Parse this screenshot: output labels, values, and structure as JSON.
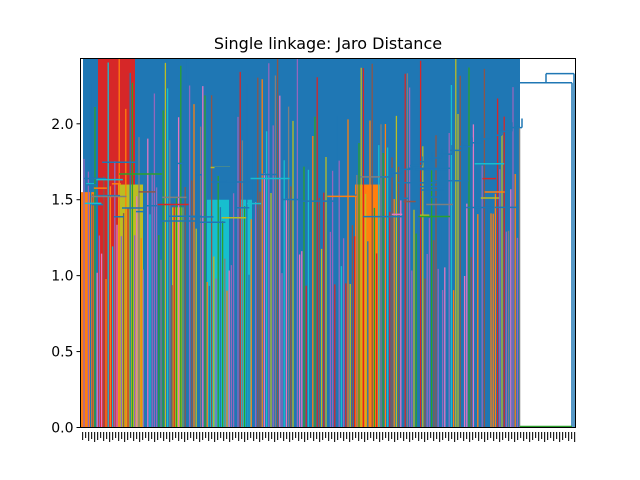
{
  "chart_data": {
    "type": "dendrogram",
    "title": "Single linkage: Jaro Distance",
    "xlabel": "",
    "ylabel": "",
    "ylim": [
      0.0,
      2.43
    ],
    "yticks": [
      0.0,
      0.5,
      1.0,
      1.5,
      2.0
    ],
    "ytick_labels": [
      "0.0",
      "0.5",
      "1.0",
      "1.5",
      "2.0"
    ],
    "leaf_label_note": "leaf labels along the x-axis are too dense to read",
    "linkage": "single",
    "palette": [
      "#1f77b4",
      "#ff7f0e",
      "#2ca02c",
      "#d62728",
      "#9467bd",
      "#8c564b",
      "#e377c2",
      "#7f7f7f",
      "#bcbd22",
      "#17becf"
    ],
    "above_threshold_color": "#1f77b4",
    "top_merges": [
      {
        "name": "main-cluster",
        "height": 2.27
      },
      {
        "name": "outlier-pair",
        "height": 2.33
      }
    ],
    "major_clusters": [
      {
        "color": "#d62728",
        "height": 2.43
      },
      {
        "color": "#bcbd22",
        "height": 1.61
      },
      {
        "color": "#17becf",
        "height": 1.52
      },
      {
        "color": "#ff7f0e",
        "height": 1.62
      },
      {
        "color": "#ff7f0e",
        "height": 1.55
      }
    ],
    "grid": false,
    "legend": "none"
  }
}
